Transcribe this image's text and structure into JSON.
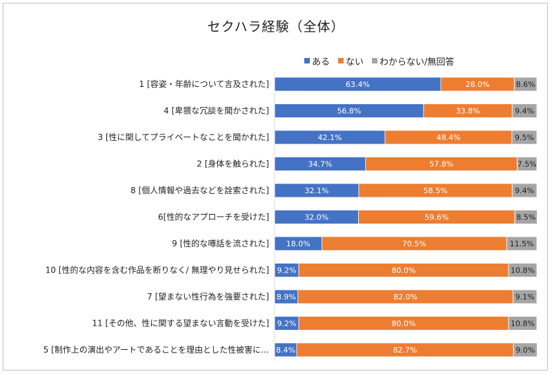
{
  "chart_data": {
    "type": "bar",
    "orientation": "horizontal",
    "stacked": true,
    "normalized": true,
    "title": "セクハラ経験（全体）",
    "legend": [
      {
        "name": "ある",
        "color": "#4472C4"
      },
      {
        "name": "ない",
        "color": "#ED7D31"
      },
      {
        "name": "わからない/無回答",
        "color": "#A5A5A5"
      }
    ],
    "legend_position": "top-right",
    "categories": [
      "1 [容姿・年齢について言及された]",
      "4 [卑猥な冗談を聞かされた]",
      "3 [性に関してプライベートなことを聞かれた]",
      "2 [身体を触られた]",
      "8 [個人情報や過去などを詮索された]",
      "6[性的なアプローチを受けた]",
      "9 [性的な噂話を流された]",
      "10 [性的な内容を含む作品を断りなく/ 無理やり見せられた]",
      "7 [望まない性行為を強要された]",
      "11 [その他、性に関する望まない言動を受けた]",
      "5 [制作上の演出やアートであることを理由とした性被害に…"
    ],
    "series": [
      {
        "name": "ある",
        "values": [
          63.4,
          56.8,
          42.1,
          34.7,
          32.1,
          32.0,
          18.0,
          9.2,
          8.9,
          9.2,
          8.4
        ],
        "labels": [
          "63.4%",
          "56.8%",
          "42.1%",
          "34.7%",
          "32.1%",
          "32.0%",
          "18.0%",
          "9.2%",
          "8.9%",
          "9.2%",
          "8.4%"
        ]
      },
      {
        "name": "ない",
        "values": [
          28.0,
          33.8,
          48.4,
          57.8,
          58.5,
          59.6,
          70.5,
          80.0,
          82.0,
          80.0,
          82.7
        ],
        "labels": [
          "28.0%",
          "33.8%",
          "48.4%",
          "57.8%",
          "58.5%",
          "59.6%",
          "70.5%",
          "80.0%",
          "82.0%",
          "80.0%",
          "82.7%"
        ]
      },
      {
        "name": "わからない/無回答",
        "values": [
          8.6,
          9.4,
          9.5,
          7.5,
          9.4,
          8.5,
          11.5,
          10.8,
          9.1,
          10.8,
          9.0
        ],
        "labels": [
          "8.6%",
          "9.4%",
          "9.5%",
          "7.5%",
          "9.4%",
          "8.5%",
          "11.5%",
          "10.8%",
          "9.1%",
          "10.8%",
          "9.0%"
        ]
      }
    ],
    "xlim": [
      0,
      100
    ],
    "grid": false
  }
}
